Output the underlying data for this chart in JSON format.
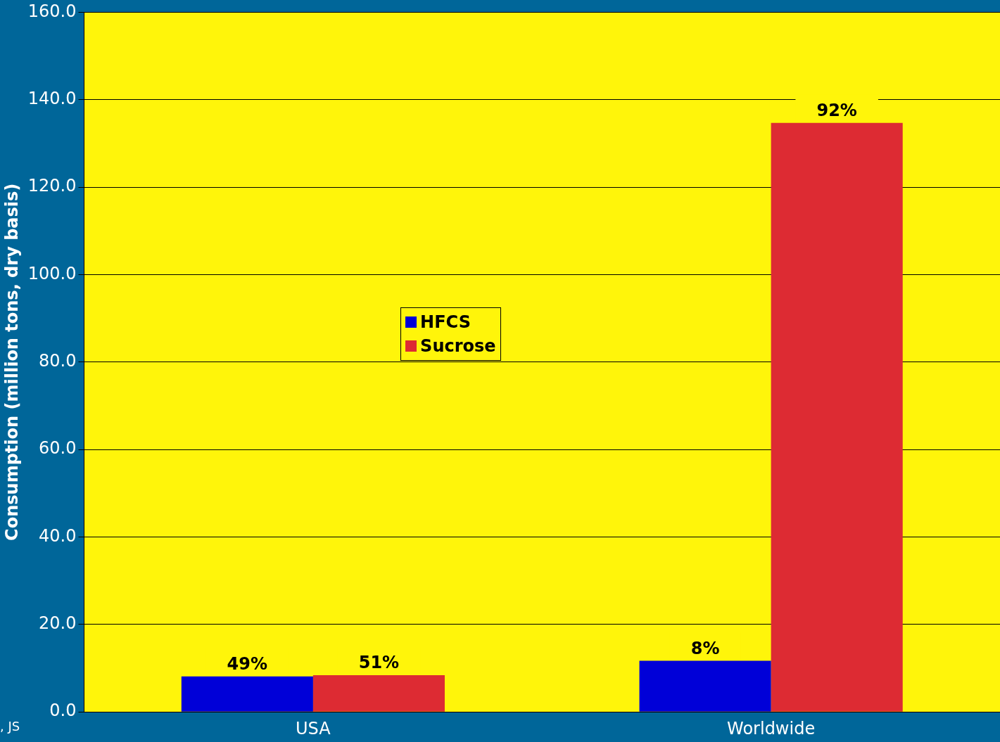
{
  "chart_data": {
    "type": "bar",
    "ylabel": "Consumption (million tons, dry basis)",
    "categories": [
      "USA",
      "Worldwide"
    ],
    "series": [
      {
        "name": "HFCS",
        "color": "#0000d8",
        "values": [
          8.1,
          11.7
        ]
      },
      {
        "name": "Sucrose",
        "color": "#dd2b33",
        "values": [
          8.4,
          134.7
        ]
      }
    ],
    "ylim": [
      0,
      160
    ],
    "yticks": [
      {
        "value": 0,
        "label": "0.0"
      },
      {
        "value": 20,
        "label": "20.0"
      },
      {
        "value": 40,
        "label": "40.0"
      },
      {
        "value": 60,
        "label": "60.0"
      },
      {
        "value": 80,
        "label": "80.0"
      },
      {
        "value": 100,
        "label": "100.0"
      },
      {
        "value": 120,
        "label": "120.0"
      },
      {
        "value": 140,
        "label": "140.0"
      },
      {
        "value": 160,
        "label": "160.0"
      }
    ],
    "grid": "y",
    "legend": "center",
    "annotations": [
      ", JS",
      {
        "text": "49%",
        "y": 8.1
      },
      {
        "text": "51%",
        "y": 8.4
      },
      {
        "text": "8%",
        "y": 11.7
      },
      {
        "text": "92%",
        "y": 134.7
      }
    ]
  }
}
